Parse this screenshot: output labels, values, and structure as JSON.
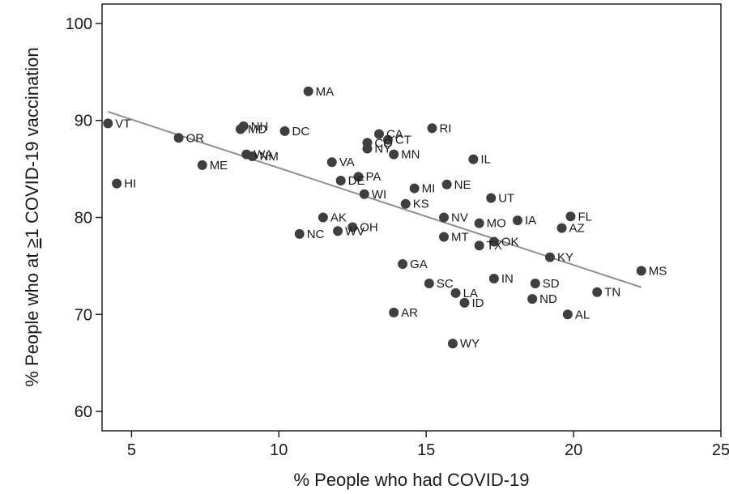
{
  "chart_data": {
    "type": "scatter",
    "xlabel": "% People who had COVID-19",
    "ylabel_parts": [
      "% People who at ",
      "≥",
      "1 COVID-19 vaccination"
    ],
    "xlim": [
      4,
      25
    ],
    "ylim": [
      58,
      102
    ],
    "xticks": [
      5,
      10,
      15,
      20,
      25
    ],
    "yticks": [
      60,
      70,
      80,
      90,
      100
    ],
    "grid": false,
    "point_color": "#3f3f3f",
    "trend_color": "#8f8f8f",
    "trendline": [
      [
        4.2,
        90.9
      ],
      [
        22.3,
        72.8
      ]
    ],
    "points": [
      {
        "label": "VT",
        "x": 4.2,
        "y": 89.7
      },
      {
        "label": "HI",
        "x": 4.5,
        "y": 83.5
      },
      {
        "label": "OR",
        "x": 6.6,
        "y": 88.2
      },
      {
        "label": "ME",
        "x": 7.4,
        "y": 85.4
      },
      {
        "label": "MD",
        "x": 8.7,
        "y": 89.1
      },
      {
        "label": "NH",
        "x": 8.8,
        "y": 89.4
      },
      {
        "label": "WA",
        "x": 8.9,
        "y": 86.5
      },
      {
        "label": "NM",
        "x": 9.1,
        "y": 86.3
      },
      {
        "label": "DC",
        "x": 10.2,
        "y": 88.9
      },
      {
        "label": "MA",
        "x": 11.0,
        "y": 93.0
      },
      {
        "label": "NC",
        "x": 10.7,
        "y": 78.3
      },
      {
        "label": "AK",
        "x": 11.5,
        "y": 80.0
      },
      {
        "label": "VA",
        "x": 11.8,
        "y": 85.7
      },
      {
        "label": "WV",
        "x": 12.0,
        "y": 78.6
      },
      {
        "label": "DE",
        "x": 12.1,
        "y": 83.8
      },
      {
        "label": "OH",
        "x": 12.5,
        "y": 79.0
      },
      {
        "label": "PA",
        "x": 12.7,
        "y": 84.2
      },
      {
        "label": "WI",
        "x": 12.9,
        "y": 82.4
      },
      {
        "label": "CO",
        "x": 13.0,
        "y": 87.7
      },
      {
        "label": "NY",
        "x": 13.0,
        "y": 87.1
      },
      {
        "label": "CA",
        "x": 13.4,
        "y": 88.6
      },
      {
        "label": "CT",
        "x": 13.7,
        "y": 88.0
      },
      {
        "label": "MN",
        "x": 13.9,
        "y": 86.5
      },
      {
        "label": "AR",
        "x": 13.9,
        "y": 70.2
      },
      {
        "label": "GA",
        "x": 14.2,
        "y": 75.2
      },
      {
        "label": "KS",
        "x": 14.3,
        "y": 81.4
      },
      {
        "label": "MI",
        "x": 14.6,
        "y": 83.0
      },
      {
        "label": "SC",
        "x": 15.1,
        "y": 73.2
      },
      {
        "label": "RI",
        "x": 15.2,
        "y": 89.2
      },
      {
        "label": "NV",
        "x": 15.6,
        "y": 80.0
      },
      {
        "label": "MT",
        "x": 15.6,
        "y": 78.0
      },
      {
        "label": "NE",
        "x": 15.7,
        "y": 83.4
      },
      {
        "label": "WY",
        "x": 15.9,
        "y": 67.0
      },
      {
        "label": "LA",
        "x": 16.0,
        "y": 72.2
      },
      {
        "label": "ID",
        "x": 16.3,
        "y": 71.2
      },
      {
        "label": "IL",
        "x": 16.6,
        "y": 86.0
      },
      {
        "label": "MO",
        "x": 16.8,
        "y": 79.4
      },
      {
        "label": "TX",
        "x": 16.8,
        "y": 77.1
      },
      {
        "label": "UT",
        "x": 17.2,
        "y": 82.0
      },
      {
        "label": "IN",
        "x": 17.3,
        "y": 73.7
      },
      {
        "label": "OK",
        "x": 17.3,
        "y": 77.5
      },
      {
        "label": "IA",
        "x": 18.1,
        "y": 79.7
      },
      {
        "label": "ND",
        "x": 18.6,
        "y": 71.6
      },
      {
        "label": "SD",
        "x": 18.7,
        "y": 73.2
      },
      {
        "label": "KY",
        "x": 19.2,
        "y": 75.9
      },
      {
        "label": "AZ",
        "x": 19.6,
        "y": 78.9
      },
      {
        "label": "AL",
        "x": 19.8,
        "y": 70.0
      },
      {
        "label": "FL",
        "x": 19.9,
        "y": 80.1
      },
      {
        "label": "TN",
        "x": 20.8,
        "y": 72.3
      },
      {
        "label": "MS",
        "x": 22.3,
        "y": 74.5
      }
    ]
  }
}
